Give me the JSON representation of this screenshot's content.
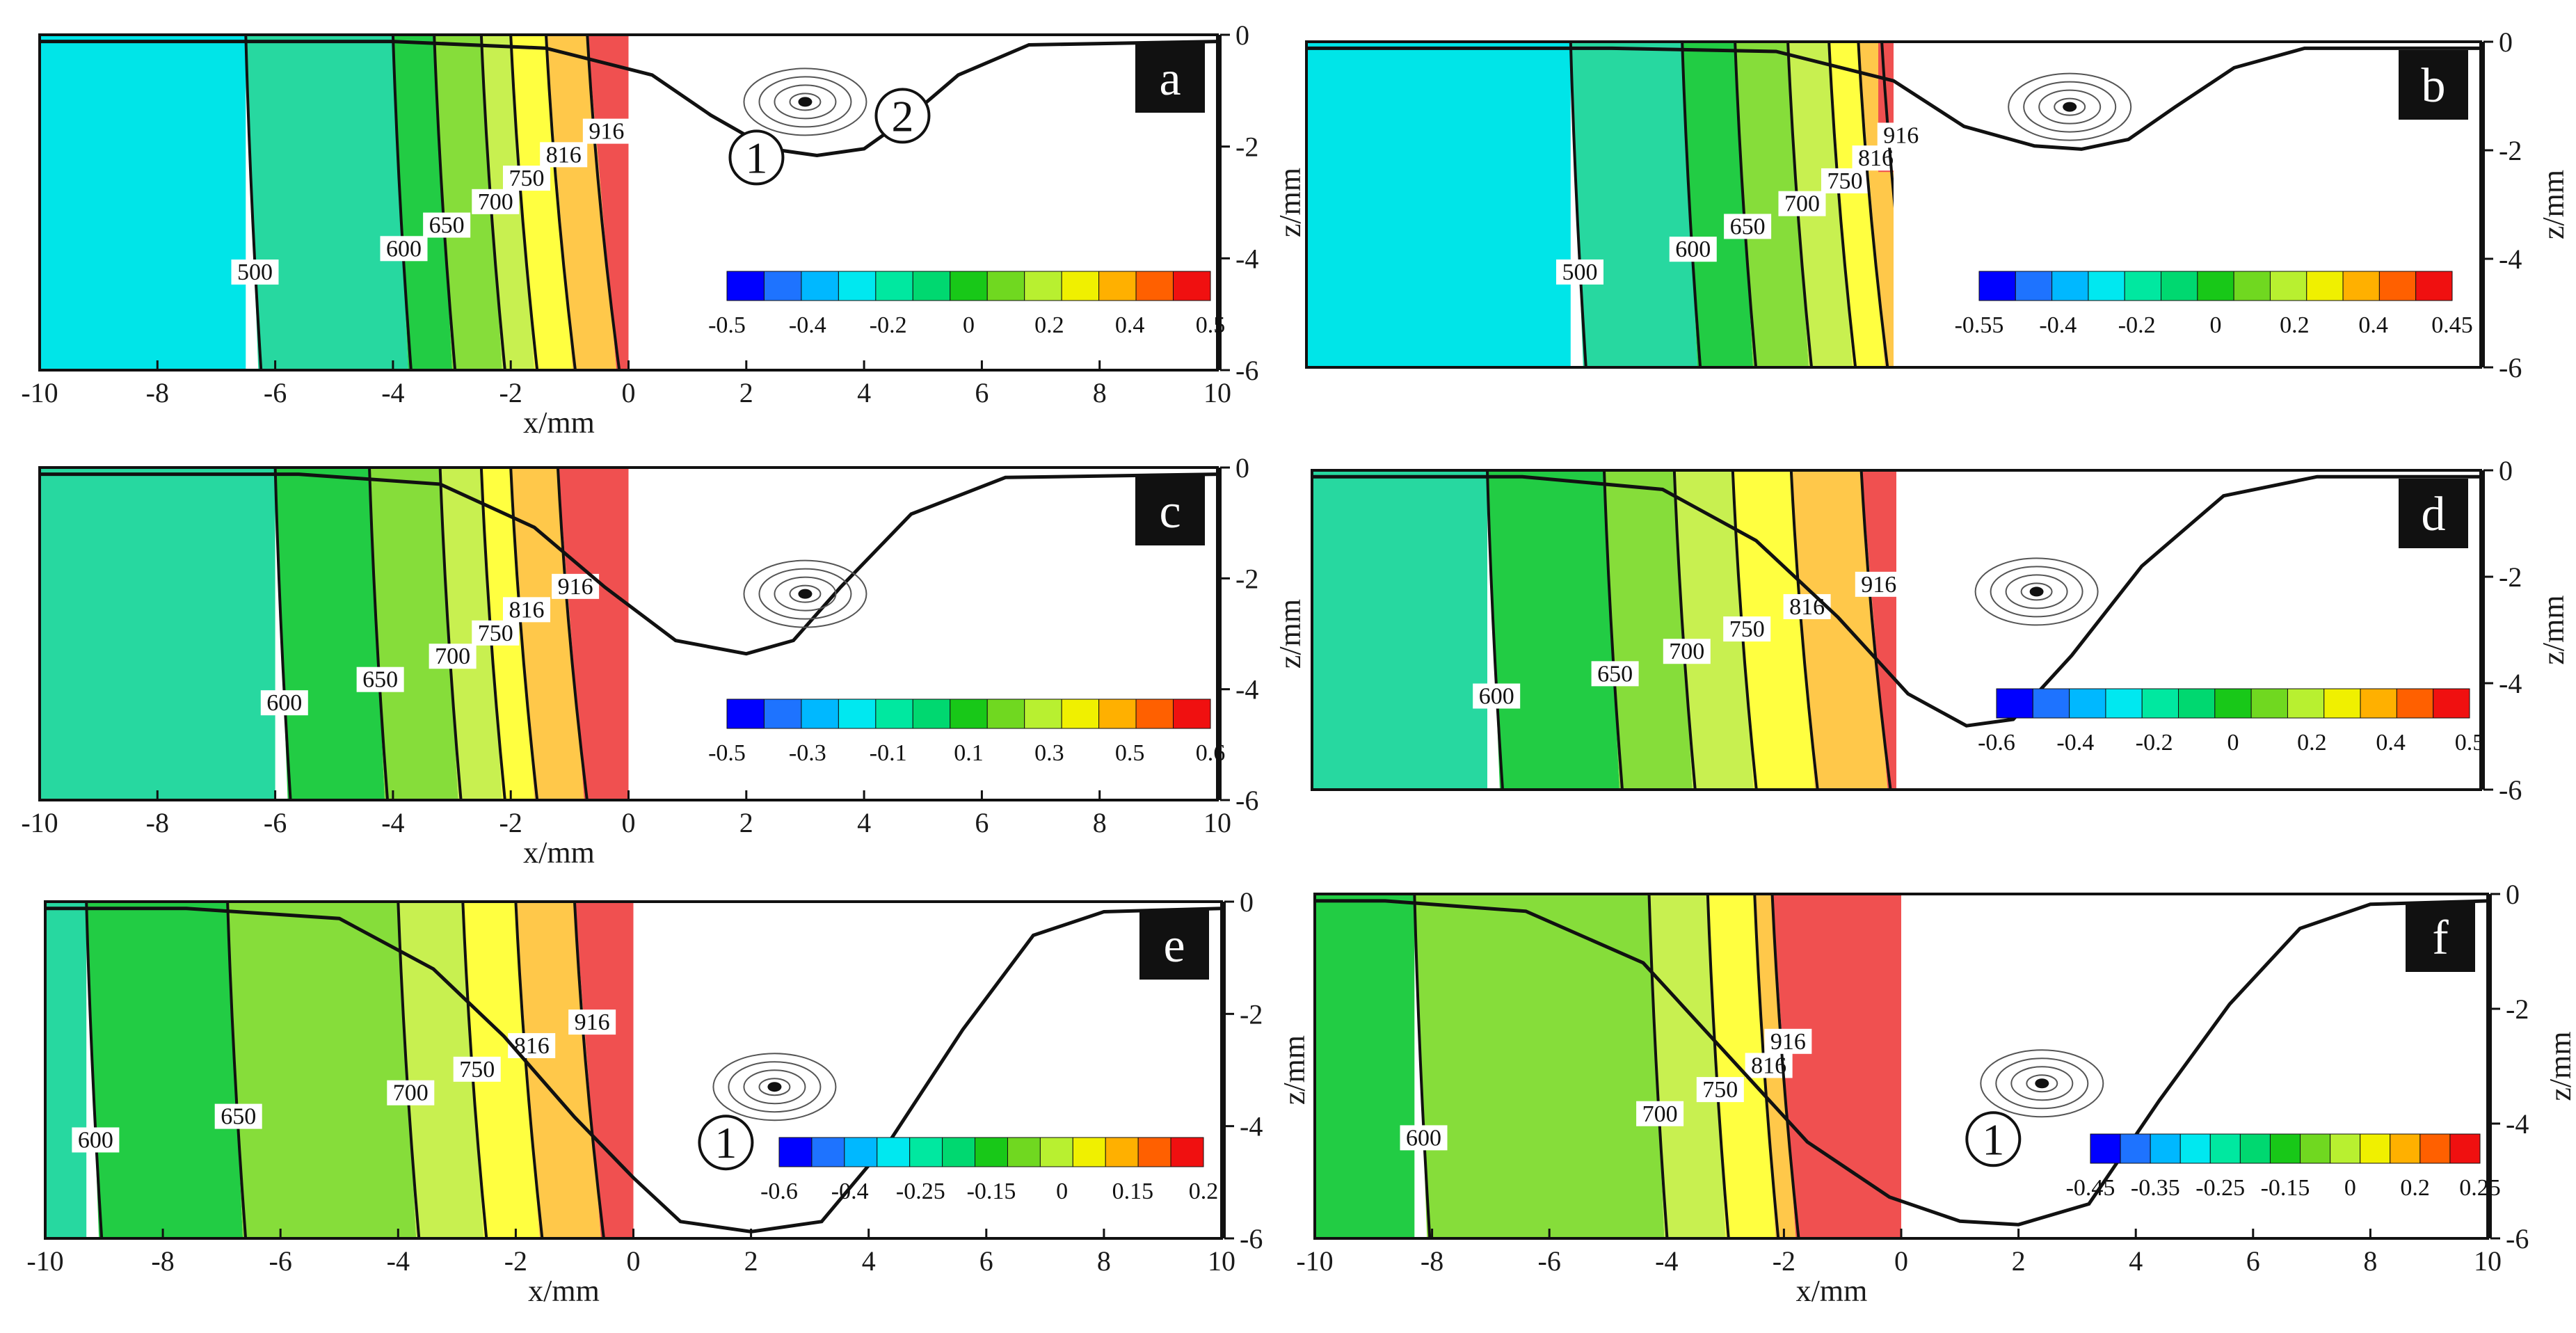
{
  "chart_data": [
    {
      "type": "contour",
      "panel_label": "a",
      "xlabel": "x/mm",
      "ylabel": "z/mm",
      "xlim": [
        -10,
        10
      ],
      "ylim": [
        -6,
        0
      ],
      "x_ticks": [
        "-10",
        "-8",
        "-6",
        "-4",
        "-2",
        "0",
        "2",
        "4",
        "6",
        "8",
        "10"
      ],
      "z_ticks": [
        "0",
        "-2",
        "-4",
        "-6"
      ],
      "isotherms": [
        {
          "label": "500",
          "x": -6.5
        },
        {
          "label": "600",
          "x": -4.0
        },
        {
          "label": "650",
          "x": -3.3
        },
        {
          "label": "700",
          "x": -2.5
        },
        {
          "label": "750",
          "x": -2.0
        },
        {
          "label": "816",
          "x": -1.4
        },
        {
          "label": "916",
          "x": -0.7
        }
      ],
      "colorbar_ticks": [
        "-0.5",
        "-0.4",
        "-0.2",
        "0",
        "0.2",
        "0.4",
        "0.5"
      ],
      "vortex_labels": [
        "1",
        "2"
      ]
    },
    {
      "type": "contour",
      "panel_label": "b",
      "xlabel": "",
      "ylabel": "z/mm",
      "xlim": [
        -10,
        10
      ],
      "ylim": [
        -6,
        0
      ],
      "x_ticks": [],
      "z_ticks": [
        "0",
        "-2",
        "-4",
        "-6"
      ],
      "isotherms": [
        {
          "label": "500",
          "x": -5.5
        },
        {
          "label": "600",
          "x": -3.6
        },
        {
          "label": "650",
          "x": -2.7
        },
        {
          "label": "700",
          "x": -1.8
        },
        {
          "label": "750",
          "x": -1.1
        },
        {
          "label": "816",
          "x": -0.6
        },
        {
          "label": "916",
          "x": -0.2
        }
      ],
      "colorbar_ticks": [
        "-0.55",
        "-0.4",
        "-0.2",
        "0",
        "0.2",
        "0.4",
        "0.45"
      ],
      "vortex_labels": []
    },
    {
      "type": "contour",
      "panel_label": "c",
      "xlabel": "x/mm",
      "ylabel": "z/mm",
      "xlim": [
        -10,
        10
      ],
      "ylim": [
        -6,
        0
      ],
      "x_ticks": [
        "-10",
        "-8",
        "-6",
        "-4",
        "-2",
        "0",
        "2",
        "4",
        "6",
        "8",
        "10"
      ],
      "z_ticks": [
        "0",
        "-2",
        "-4",
        "-6"
      ],
      "isotherms": [
        {
          "label": "600",
          "x": -6.0
        },
        {
          "label": "650",
          "x": -4.4
        },
        {
          "label": "700",
          "x": -3.2
        },
        {
          "label": "750",
          "x": -2.5
        },
        {
          "label": "816",
          "x": -2.0
        },
        {
          "label": "916",
          "x": -1.2
        }
      ],
      "colorbar_ticks": [
        "-0.5",
        "-0.3",
        "-0.1",
        "0.1",
        "0.3",
        "0.5",
        "0.6"
      ],
      "vortex_labels": []
    },
    {
      "type": "contour",
      "panel_label": "d",
      "xlabel": "",
      "ylabel": "z/mm",
      "xlim": [
        -10,
        10
      ],
      "ylim": [
        -6,
        0
      ],
      "x_ticks": [],
      "z_ticks": [
        "0",
        "-2",
        "-4",
        "-6"
      ],
      "isotherms": [
        {
          "label": "600",
          "x": -7.0
        },
        {
          "label": "650",
          "x": -5.0
        },
        {
          "label": "700",
          "x": -3.8
        },
        {
          "label": "750",
          "x": -2.8
        },
        {
          "label": "816",
          "x": -1.8
        },
        {
          "label": "916",
          "x": -0.6
        }
      ],
      "colorbar_ticks": [
        "-0.6",
        "-0.4",
        "-0.2",
        "0",
        "0.2",
        "0.4",
        "0.5"
      ],
      "vortex_labels": []
    },
    {
      "type": "contour",
      "panel_label": "e",
      "xlabel": "x/mm",
      "ylabel": "z/mm",
      "xlim": [
        -10,
        10
      ],
      "ylim": [
        -6,
        0
      ],
      "x_ticks": [
        "-10",
        "-8",
        "-6",
        "-4",
        "-2",
        "0",
        "2",
        "4",
        "6",
        "8",
        "10"
      ],
      "z_ticks": [
        "0",
        "-2",
        "-4",
        "-6"
      ],
      "isotherms": [
        {
          "label": "600",
          "x": -9.3
        },
        {
          "label": "650",
          "x": -6.9
        },
        {
          "label": "700",
          "x": -4.0
        },
        {
          "label": "750",
          "x": -2.9
        },
        {
          "label": "816",
          "x": -2.0
        },
        {
          "label": "916",
          "x": -1.0
        }
      ],
      "colorbar_ticks": [
        "-0.6",
        "-0.4",
        "-0.25",
        "-0.15",
        "0",
        "0.15",
        "0.2"
      ],
      "vortex_labels": [
        "1"
      ]
    },
    {
      "type": "contour",
      "panel_label": "f",
      "xlabel": "x/mm",
      "ylabel": "z/mm",
      "xlim": [
        -10,
        10
      ],
      "ylim": [
        -6,
        0
      ],
      "x_ticks": [
        "-10",
        "-8",
        "-6",
        "-4",
        "-2",
        "0",
        "2",
        "4",
        "6",
        "8",
        "10"
      ],
      "z_ticks": [
        "0",
        "-2",
        "-4",
        "-6"
      ],
      "isotherms": [
        {
          "label": "600",
          "x": -8.3
        },
        {
          "label": "700",
          "x": -4.3
        },
        {
          "label": "750",
          "x": -3.3
        },
        {
          "label": "816",
          "x": -2.5
        },
        {
          "label": "916",
          "x": -2.2
        }
      ],
      "colorbar_ticks": [
        "-0.45",
        "-0.35",
        "-0.25",
        "-0.15",
        "0",
        "0.2",
        "0.25"
      ],
      "vortex_labels": [
        "1"
      ]
    }
  ]
}
